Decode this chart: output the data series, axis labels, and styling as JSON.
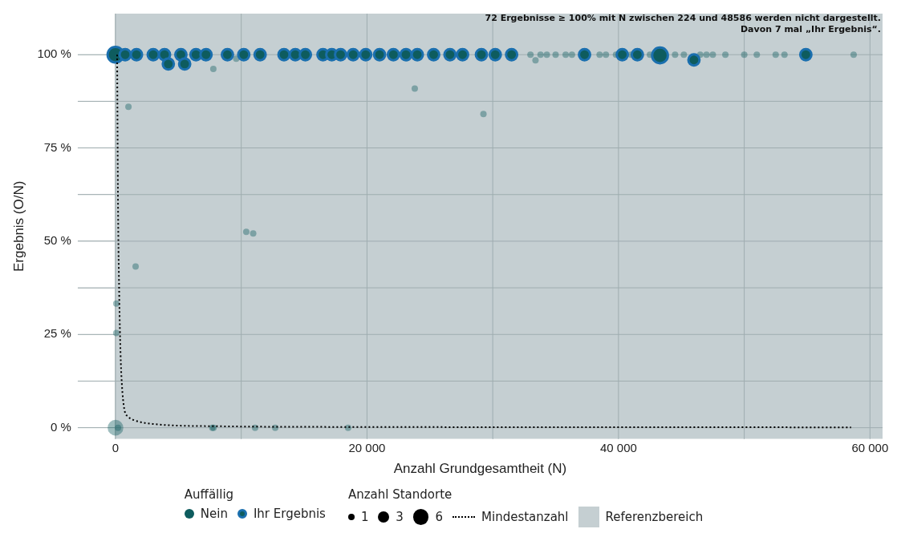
{
  "chart_data": {
    "type": "bubble",
    "xlabel": "Anzahl Grundgesamtheit (N)",
    "ylabel": "Ergebnis (O/N)",
    "legend_title": "Auffällig",
    "annotations": [
      "72 Ergebnisse ≥ 100% mit N zwischen 224 und 48586 werden nicht dargestellt.",
      "Davon 7 mal „Ihr Ergebnis“.",
      "Anzahl Standorte"
    ],
    "xlim": [
      -3000,
      61000
    ],
    "ylim": [
      -3,
      111
    ],
    "xticks": [
      {
        "value": 0,
        "label": "0"
      },
      {
        "value": 10000,
        "label": null
      },
      {
        "value": 20000,
        "label": "20 000"
      },
      {
        "value": 30000,
        "label": null
      },
      {
        "value": 40000,
        "label": "40 000"
      },
      {
        "value": 50000,
        "label": null
      },
      {
        "value": 60000,
        "label": "60 000"
      }
    ],
    "yticks": [
      {
        "value": 0,
        "label": "0 %"
      },
      {
        "value": 12.5,
        "label": null
      },
      {
        "value": 25,
        "label": "25 %"
      },
      {
        "value": 37.5,
        "label": null
      },
      {
        "value": 50,
        "label": "50 %"
      },
      {
        "value": 62.5,
        "label": null
      },
      {
        "value": 75,
        "label": "75 %"
      },
      {
        "value": 87.5,
        "label": null
      },
      {
        "value": 100,
        "label": "100 %"
      }
    ],
    "grid": true,
    "legend": "bottom",
    "size_legend": [
      1,
      3,
      6
    ],
    "bands": [
      {
        "axis": "x",
        "from": 0,
        "to": 61000,
        "label": "Referenzbereich",
        "color": "#c5cfd2"
      }
    ],
    "series": [
      {
        "name": "Nein",
        "type": "bubble",
        "color": "#0e5c5e",
        "x": [
          0,
          200,
          7700,
          7800,
          11100,
          12700,
          18500,
          60,
          60,
          1600,
          10400,
          10950,
          1030,
          7780,
          23800,
          29260,
          33400,
          9600,
          33000,
          33800,
          34300,
          35000,
          35800,
          36300,
          38500,
          39000,
          39800,
          41000,
          42500,
          44500,
          45200,
          46500,
          47000,
          47500,
          48500,
          50000,
          51000,
          52500,
          53200,
          58700
        ],
        "values": [
          0,
          0,
          0,
          0,
          0,
          0,
          0,
          33.3,
          25.4,
          43.2,
          52.5,
          52.1,
          86,
          96.2,
          90.9,
          84.1,
          98.5,
          98.9,
          100,
          100,
          100,
          100,
          100,
          100,
          100,
          100,
          100,
          100,
          100,
          100,
          100,
          100,
          100,
          100,
          100,
          100,
          100,
          100,
          100,
          100
        ],
        "sizes": [
          6,
          1,
          1,
          1,
          1,
          1,
          1,
          1,
          1,
          1,
          1,
          1,
          1,
          1,
          1,
          1,
          1,
          1,
          1,
          1,
          1,
          1,
          1,
          1,
          1,
          1,
          1,
          1,
          1,
          1,
          1,
          1,
          1,
          1,
          1,
          1,
          1,
          1,
          1,
          1
        ]
      },
      {
        "name": "Ihr Ergebnis",
        "type": "bubble",
        "color": "#1a6fae",
        "x": [
          0,
          770,
          1670,
          3000,
          3900,
          5200,
          6400,
          7200,
          8900,
          10200,
          11500,
          13400,
          14300,
          15100,
          16500,
          17200,
          17900,
          18900,
          19900,
          21000,
          22100,
          23100,
          24000,
          25300,
          26600,
          27600,
          29100,
          30200,
          31500,
          37300,
          40300,
          41500,
          43300,
          46000,
          54900,
          4200,
          5500
        ],
        "values": [
          100,
          100,
          100,
          100,
          100,
          100,
          100,
          100,
          100,
          100,
          100,
          100,
          100,
          100,
          100,
          100,
          100,
          100,
          100,
          100,
          100,
          100,
          100,
          100,
          100,
          100,
          100,
          100,
          100,
          100,
          100,
          100,
          99.8,
          98.6,
          100,
          97.5,
          97.5
        ],
        "sizes": [
          6,
          3,
          3,
          3,
          3,
          3,
          3,
          3,
          3,
          3,
          3,
          3,
          3,
          3,
          3,
          3,
          3,
          3,
          3,
          3,
          3,
          3,
          3,
          3,
          3,
          3,
          3,
          3,
          3,
          3,
          3,
          3,
          6,
          3,
          3,
          3,
          3
        ]
      },
      {
        "name": "Mindestanzahl",
        "type": "line",
        "color": "#000000",
        "marker": "none",
        "line_style": "dotted",
        "x": [
          130,
          200,
          300,
          400,
          500,
          700,
          1000,
          1500,
          3000,
          8000,
          20000,
          58500
        ],
        "values": [
          100,
          60,
          35,
          20,
          12,
          5,
          3,
          2,
          1,
          0.4,
          0.2,
          0.1
        ]
      }
    ]
  }
}
